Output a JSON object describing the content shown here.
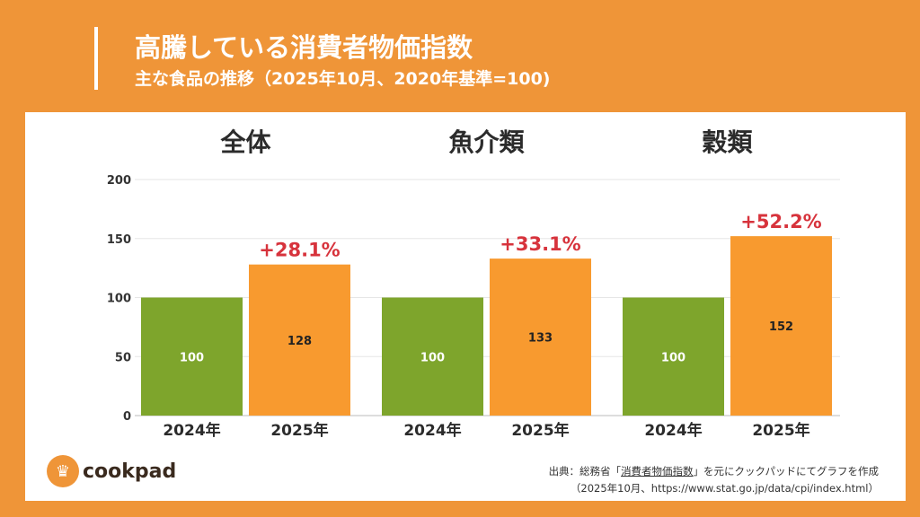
{
  "header": {
    "title": "高騰している消費者物価指数",
    "subtitle": "主な食品の推移（2025年10月、2020年基準=100)"
  },
  "chart_data": {
    "type": "bar",
    "panels": [
      {
        "title": "全体",
        "categories": [
          "2024年",
          "2025年"
        ],
        "values": [
          100,
          128
        ],
        "change": "+28.1%"
      },
      {
        "title": "魚介類",
        "categories": [
          "2024年",
          "2025年"
        ],
        "values": [
          100,
          133
        ],
        "change": "+33.1%"
      },
      {
        "title": "穀類",
        "categories": [
          "2024年",
          "2025年"
        ],
        "values": [
          100,
          152
        ],
        "change": "+52.2%"
      }
    ],
    "ylim": [
      0,
      200
    ],
    "yticks": [
      0,
      50,
      100,
      150,
      200
    ],
    "grid": true,
    "colors": {
      "2024年": "#7ea52c",
      "2025年": "#f89a2f",
      "change": "#d7333c"
    }
  },
  "footer": {
    "logo": "cookpad",
    "source_prefix": "出典：総務省「",
    "source_link": "消費者物価指数",
    "source_suffix": "」を元にクックパッドにてグラフを作成",
    "source_line2": "（2025年10月、https://www.stat.go.jp/data/cpi/index.html）"
  }
}
